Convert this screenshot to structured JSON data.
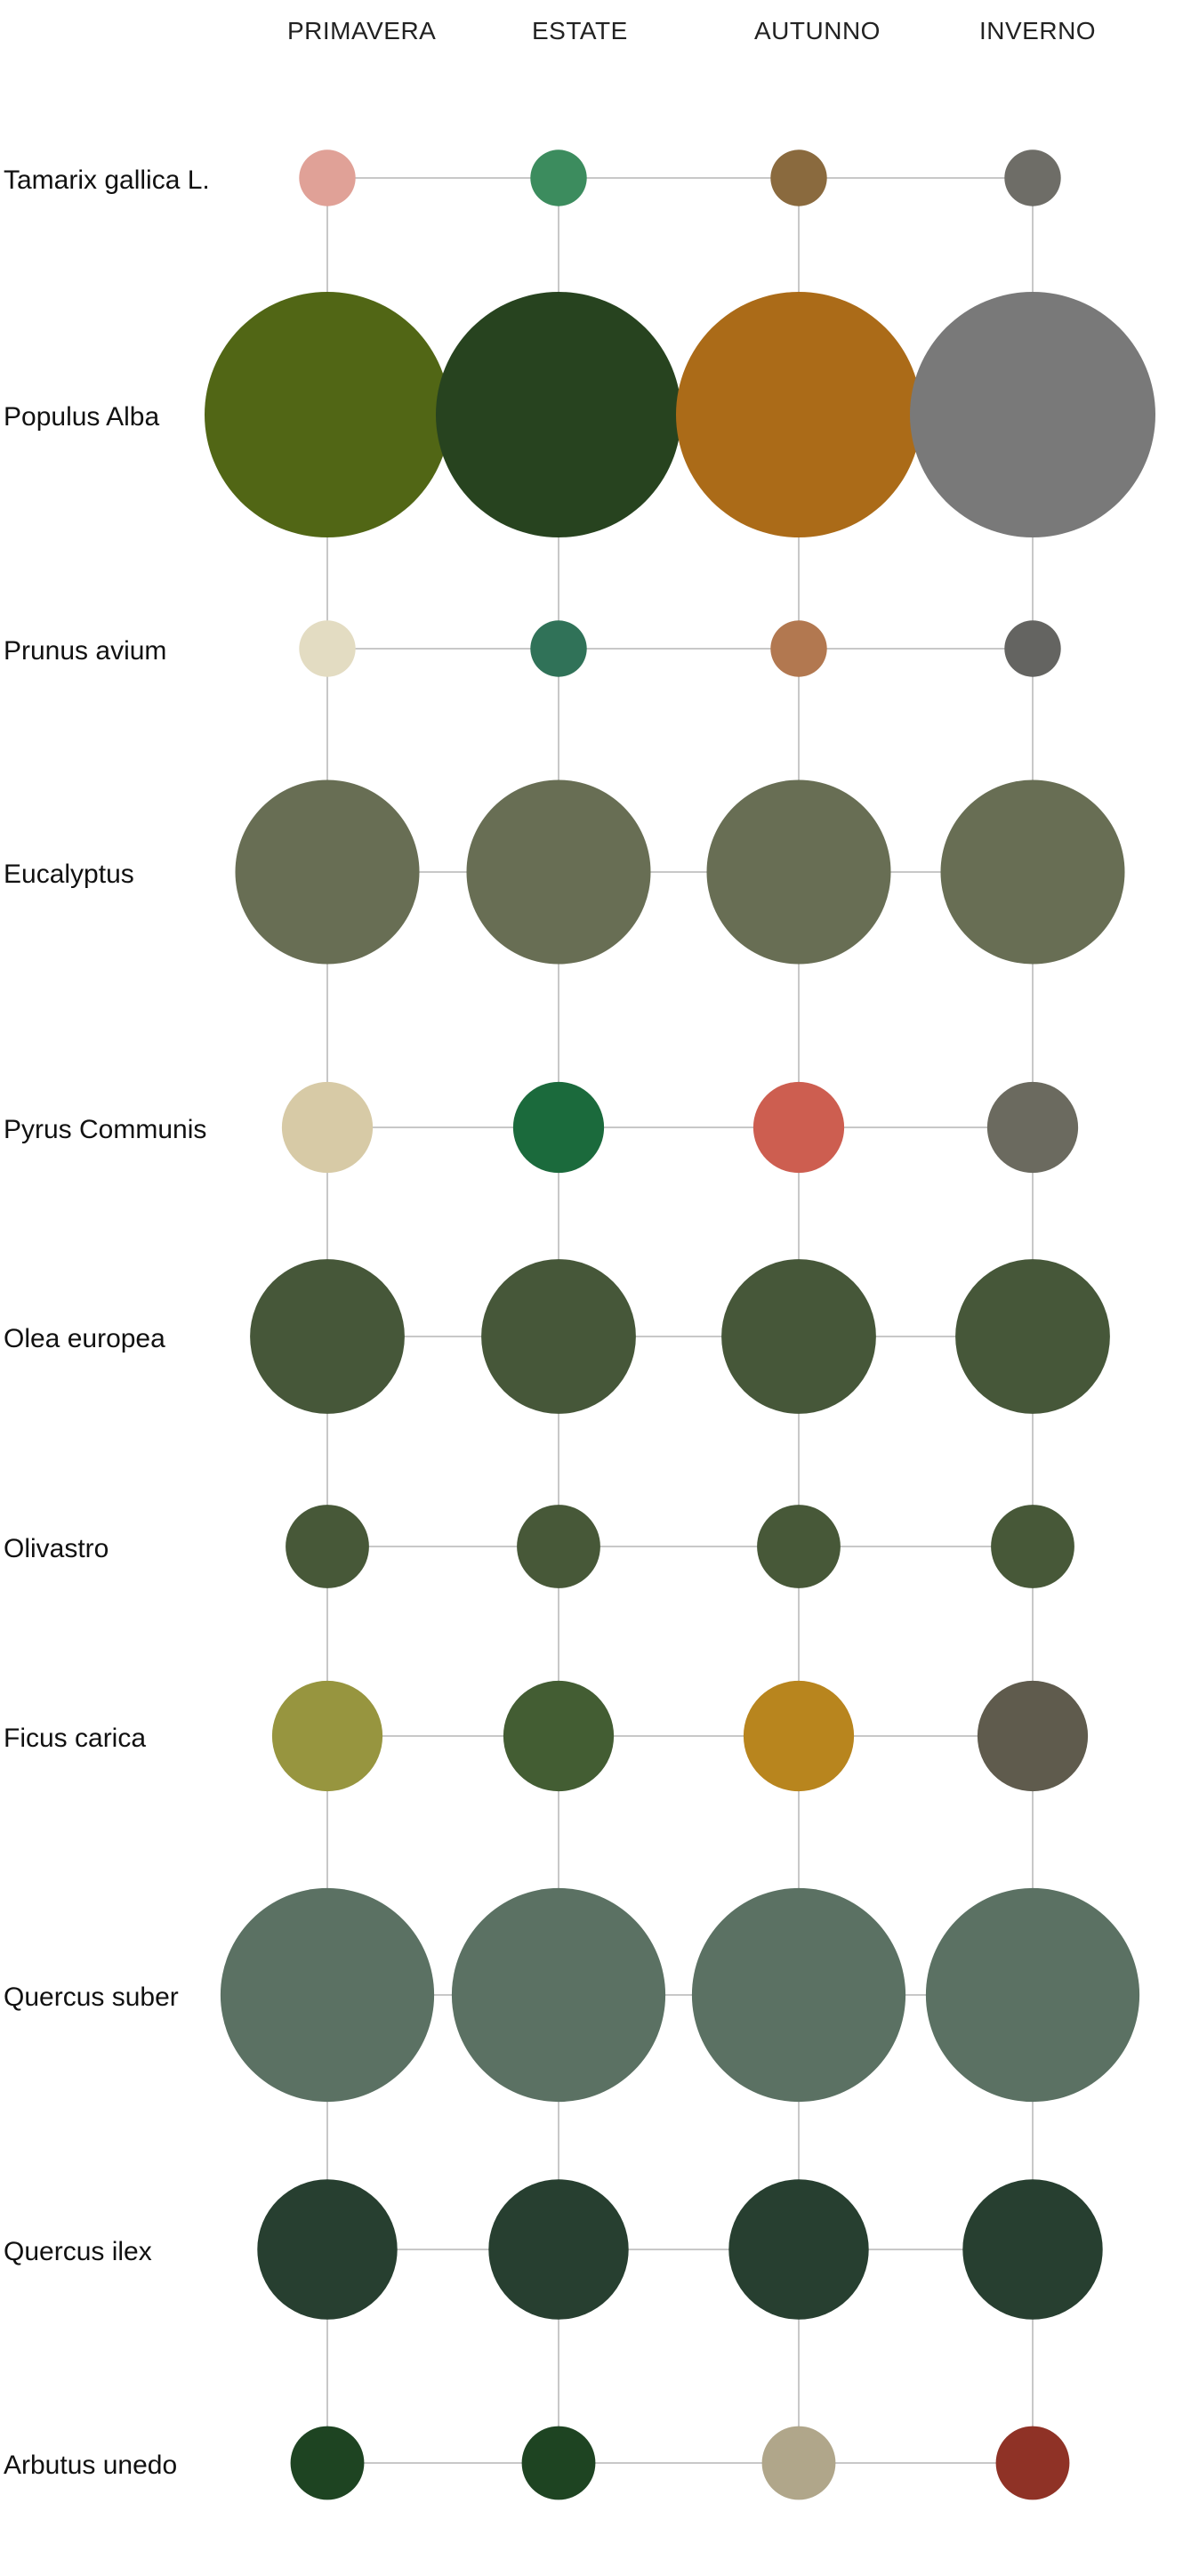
{
  "seasons": [
    "PRIMAVERA",
    "ESTATE",
    "AUTUNNO",
    "INVERNO"
  ],
  "species": [
    {
      "name": "Tamarix gallica L.",
      "colors": [
        "#e0a197",
        "#3c8c5e",
        "#8a6a3e",
        "#6e6d67"
      ],
      "sizes": [
        0.23,
        0.23,
        0.23,
        0.23
      ]
    },
    {
      "name": "Populus Alba",
      "colors": [
        "#516615",
        "#27431f",
        "#ab6b18",
        "#797979"
      ],
      "sizes": [
        1.0,
        1.0,
        1.0,
        1.0
      ]
    },
    {
      "name": "Prunus avium",
      "colors": [
        "#e3dcc2",
        "#307258",
        "#b27850",
        "#646461"
      ],
      "sizes": [
        0.23,
        0.23,
        0.23,
        0.23
      ]
    },
    {
      "name": "Eucalyptus",
      "colors": [
        "#686e54",
        "#686e54",
        "#686e54",
        "#686e54"
      ],
      "sizes": [
        0.75,
        0.75,
        0.75,
        0.75
      ]
    },
    {
      "name": "Pyrus Communis",
      "colors": [
        "#d7caa6",
        "#1b6a3c",
        "#cd5e50",
        "#6b6a5f"
      ],
      "sizes": [
        0.37,
        0.37,
        0.37,
        0.37
      ]
    },
    {
      "name": "Olea europea",
      "colors": [
        "#465739",
        "#465739",
        "#465739",
        "#465739"
      ],
      "sizes": [
        0.63,
        0.63,
        0.63,
        0.63
      ]
    },
    {
      "name": "Olivastro",
      "colors": [
        "#475838",
        "#475838",
        "#475838",
        "#475838"
      ],
      "sizes": [
        0.34,
        0.34,
        0.34,
        0.34
      ]
    },
    {
      "name": "Ficus carica",
      "colors": [
        "#97953f",
        "#435d33",
        "#b8851e",
        "#5f5b4d"
      ],
      "sizes": [
        0.45,
        0.45,
        0.45,
        0.45
      ]
    },
    {
      "name": "Quercus suber",
      "colors": [
        "#5b7163",
        "#5b7163",
        "#5b7163",
        "#5b7163"
      ],
      "sizes": [
        0.87,
        0.87,
        0.87,
        0.87
      ]
    },
    {
      "name": "Quercus ilex",
      "colors": [
        "#273f30",
        "#273f30",
        "#273f30",
        "#273f30"
      ],
      "sizes": [
        0.57,
        0.57,
        0.57,
        0.57
      ]
    },
    {
      "name": "Arbutus unedo",
      "colors": [
        "#1e4422",
        "#1e4422",
        "#b0a68a",
        "#8f3226"
      ],
      "sizes": [
        0.3,
        0.3,
        0.3,
        0.3
      ]
    }
  ]
}
